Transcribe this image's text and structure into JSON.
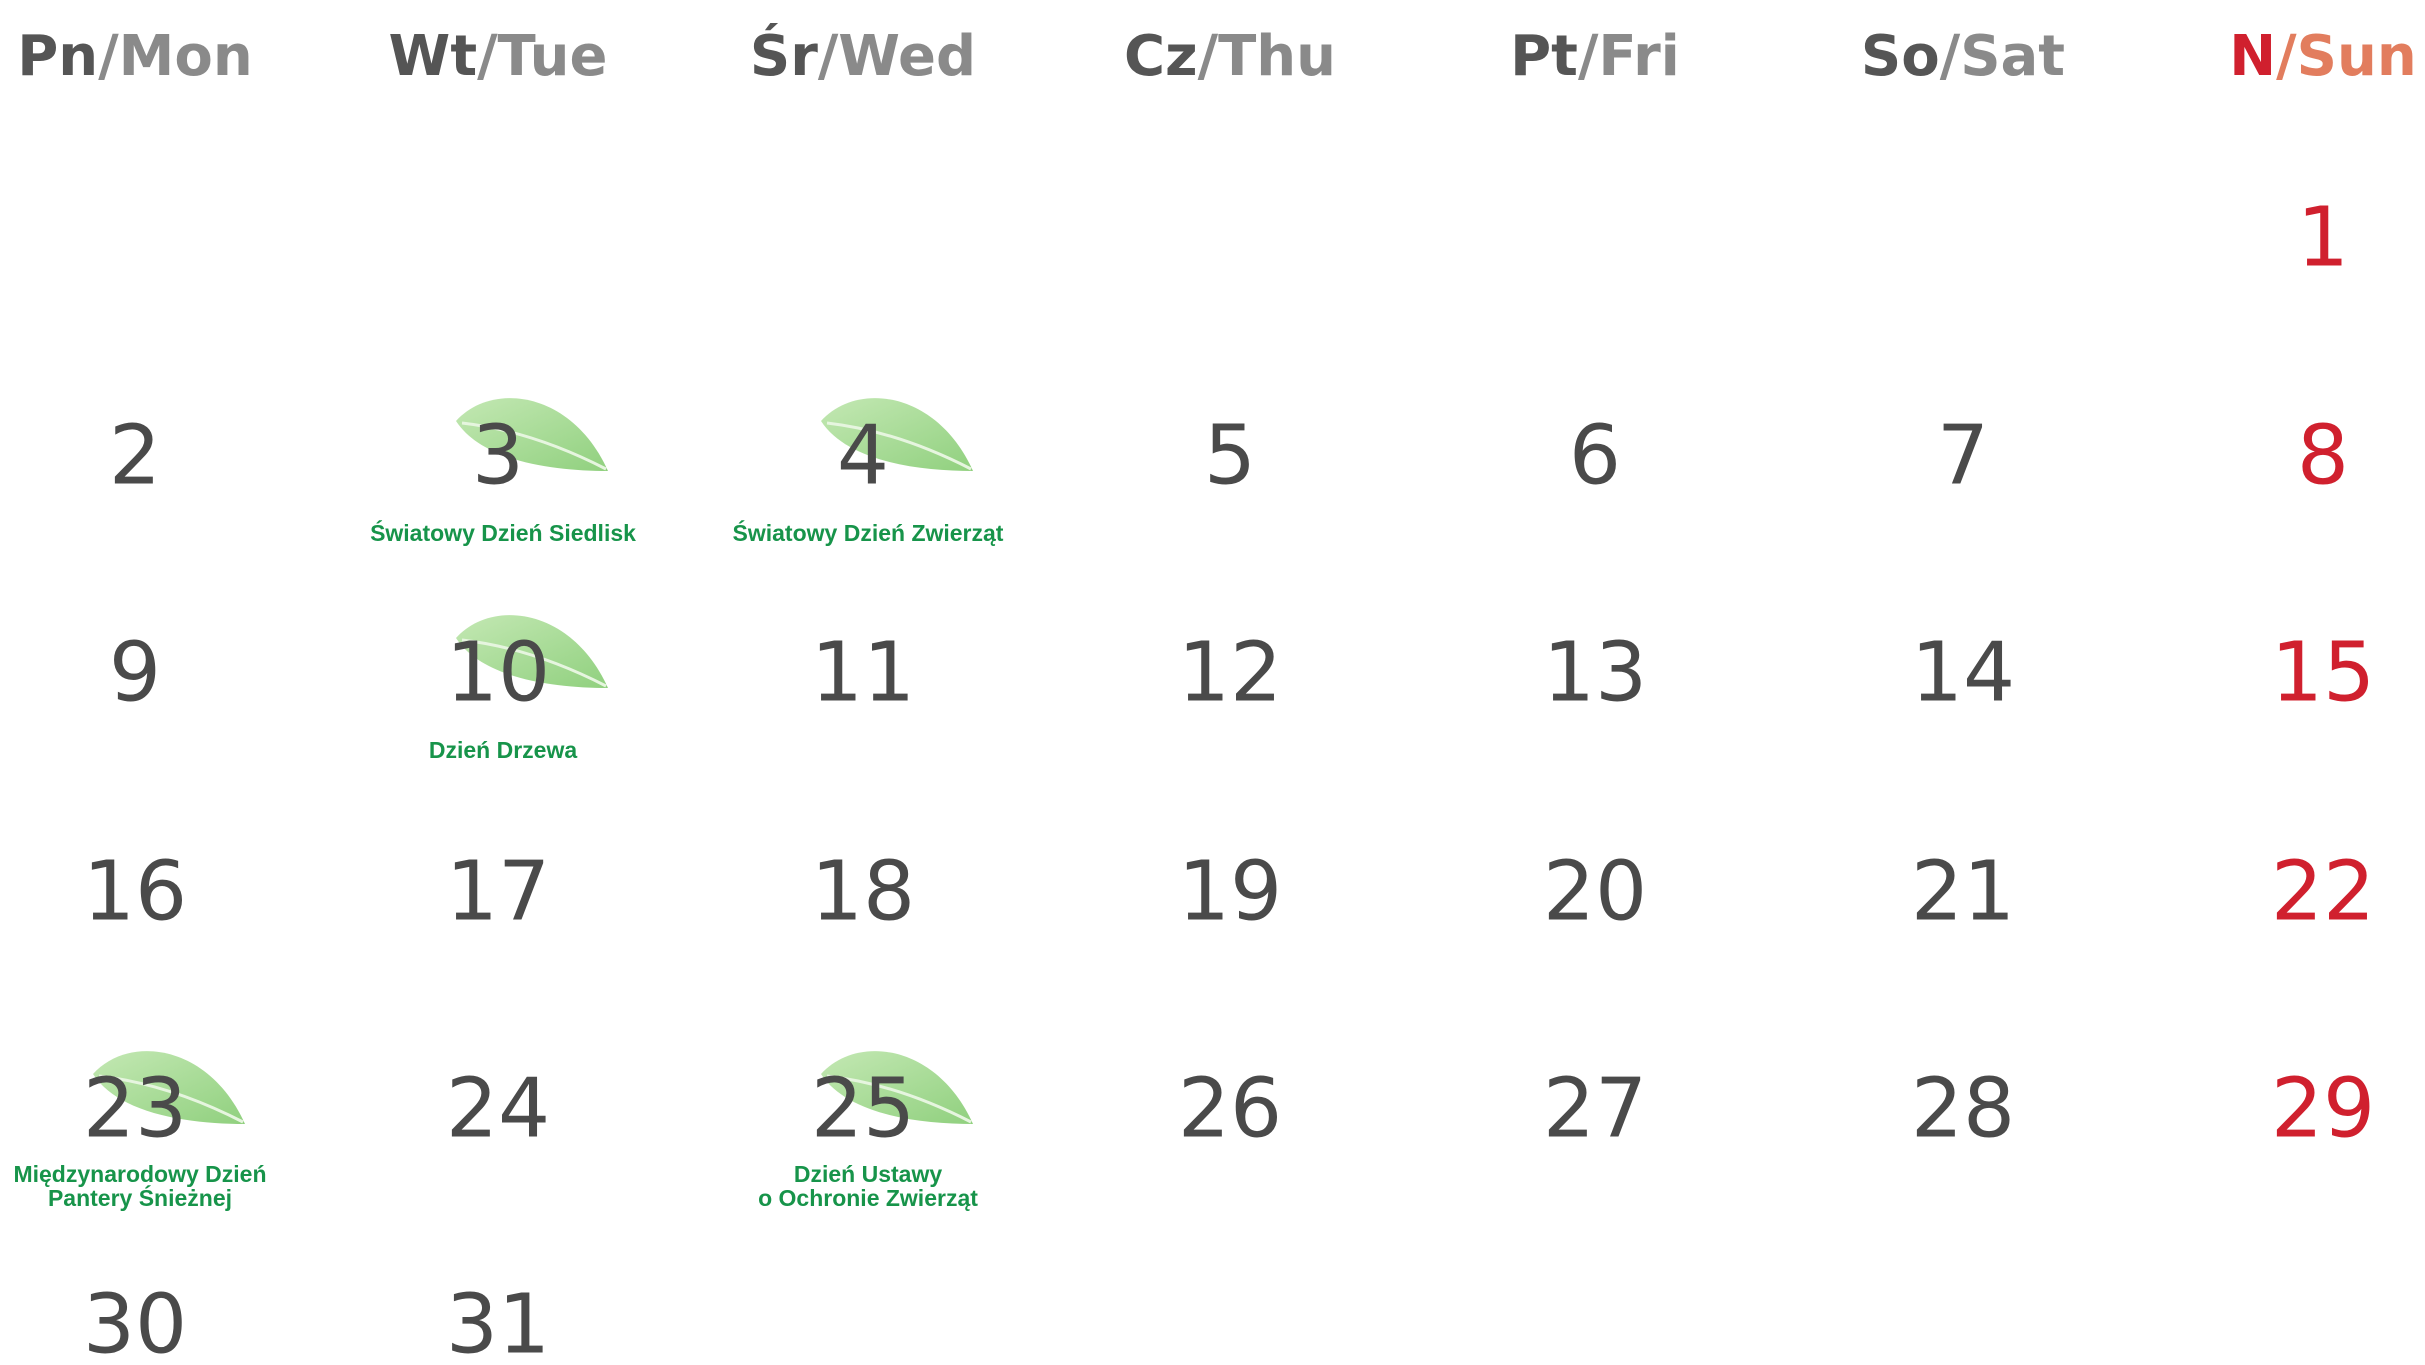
{
  "headers": [
    {
      "pl": "Pn",
      "sep": "/",
      "en": "Mon"
    },
    {
      "pl": "Wt",
      "sep": "/",
      "en": "Tue"
    },
    {
      "pl": "Śr",
      "sep": "/",
      "en": "Wed"
    },
    {
      "pl": "Cz",
      "sep": "/",
      "en": "Thu"
    },
    {
      "pl": "Pt",
      "sep": "/",
      "en": "Fri"
    },
    {
      "pl": "So",
      "sep": "/",
      "en": "Sat"
    },
    {
      "pl": "N",
      "sep": "/",
      "en": "Sun"
    }
  ],
  "weeks": [
    [
      null,
      null,
      null,
      null,
      null,
      null,
      {
        "day": 1
      }
    ],
    [
      {
        "day": 2
      },
      {
        "day": 3,
        "event": [
          "Światowy Dzień Siedlisk"
        ]
      },
      {
        "day": 4,
        "event": [
          "Światowy Dzień Zwierząt"
        ]
      },
      {
        "day": 5
      },
      {
        "day": 6
      },
      {
        "day": 7
      },
      {
        "day": 8
      }
    ],
    [
      {
        "day": 9
      },
      {
        "day": 10,
        "event": [
          "Dzień Drzewa"
        ]
      },
      {
        "day": 11
      },
      {
        "day": 12
      },
      {
        "day": 13
      },
      {
        "day": 14
      },
      {
        "day": 15
      }
    ],
    [
      {
        "day": 16
      },
      {
        "day": 17
      },
      {
        "day": 18
      },
      {
        "day": 19
      },
      {
        "day": 20
      },
      {
        "day": 21
      },
      {
        "day": 22
      }
    ],
    [
      {
        "day": 23,
        "event": [
          "Międzynarodowy Dzień",
          "Pantery Śnieżnej"
        ]
      },
      {
        "day": 24
      },
      {
        "day": 25,
        "event": [
          "Dzień Ustawy",
          "o Ochronie Zwierząt"
        ]
      },
      {
        "day": 26
      },
      {
        "day": 27
      },
      {
        "day": 28
      },
      {
        "day": 29
      }
    ],
    [
      {
        "day": 30
      },
      {
        "day": 31
      },
      null,
      null,
      null,
      null,
      null
    ]
  ]
}
